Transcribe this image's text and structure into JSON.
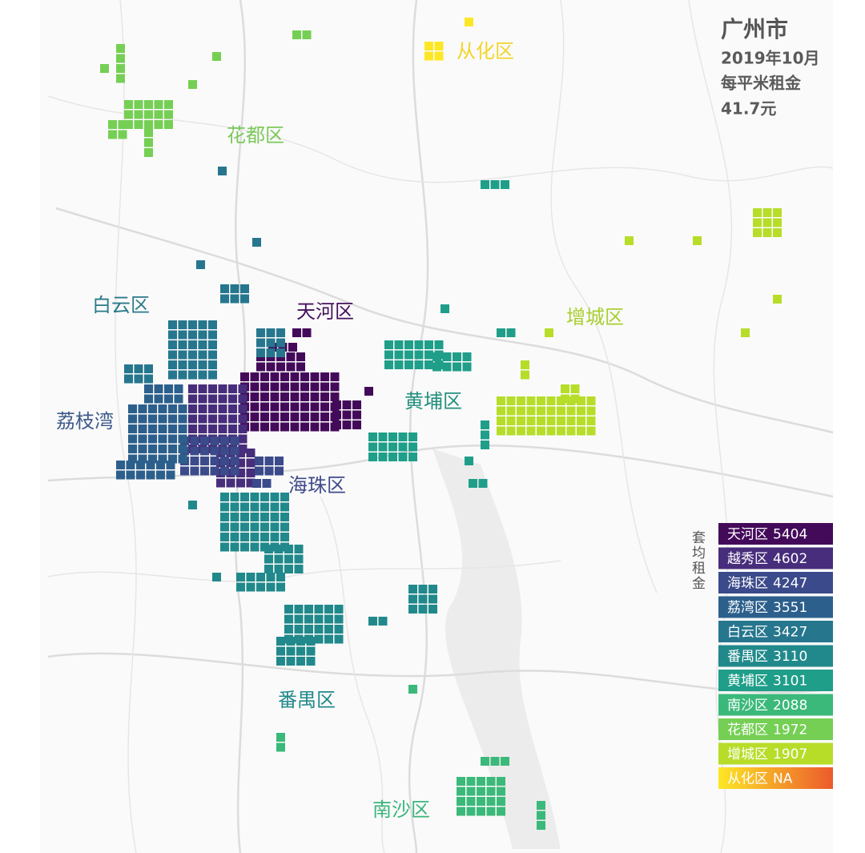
{
  "header": {
    "title": "广州市",
    "date": "2019年10月",
    "metric": "每平米租金",
    "value": "41.7元"
  },
  "districts": [
    "从化区",
    "花都区",
    "白云区",
    "天河区",
    "增城区",
    "黄埔区",
    "荔枝湾",
    "海珠区",
    "番禺区",
    "南沙区"
  ],
  "legend": {
    "title": "套均租金",
    "items": [
      {
        "name": "天河区",
        "value": 5404,
        "color": "#440a5a"
      },
      {
        "name": "越秀区",
        "value": 4602,
        "color": "#472d7b"
      },
      {
        "name": "海珠区",
        "value": 4247,
        "color": "#3b4a8a"
      },
      {
        "name": "荔湾区",
        "value": 3551,
        "color": "#2c5f8c"
      },
      {
        "name": "白云区",
        "value": 3427,
        "color": "#26768e"
      },
      {
        "name": "番禺区",
        "value": 3110,
        "color": "#21898b"
      },
      {
        "name": "黄埔区",
        "value": 3101,
        "color": "#1f9e89"
      },
      {
        "name": "南沙区",
        "value": 2088,
        "color": "#3bb97a"
      },
      {
        "name": "花都区",
        "value": 1972,
        "color": "#75cf54"
      },
      {
        "name": "增城区",
        "value": 1907,
        "color": "#b7dd29"
      },
      {
        "name": "从化区",
        "value": "NA",
        "color": "#fde725",
        "color_end": "#ec5a2c"
      }
    ]
  }
}
